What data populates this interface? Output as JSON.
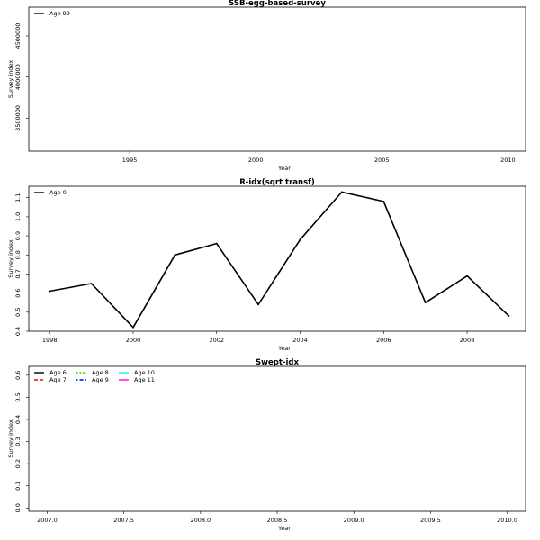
{
  "chart_data": [
    {
      "type": "line",
      "title": "SSB-egg-based-survey",
      "xlabel": "Year",
      "ylabel": "Survey index",
      "x_ticks": [
        "1995",
        "2000",
        "2005",
        "2010"
      ],
      "y_ticks": [
        "3500000",
        "4000000",
        "4500000"
      ],
      "xlim": [
        1991,
        2010.7
      ],
      "ylim": [
        3100000,
        4850000
      ],
      "series": [
        {
          "name": "Age 99",
          "color": "#000000",
          "dash": "solid",
          "x": [],
          "values": []
        }
      ]
    },
    {
      "type": "line",
      "title": "R-idx(sqrt transf)",
      "xlabel": "Year",
      "ylabel": "Survey index",
      "x_ticks": [
        "1998",
        "2000",
        "2002",
        "2004",
        "2006",
        "2008"
      ],
      "y_ticks": [
        "0.4",
        "0.5",
        "0.6",
        "0.7",
        "0.8",
        "0.9",
        "1.0",
        "1.1"
      ],
      "xlim": [
        1997.5,
        2009.4
      ],
      "ylim": [
        0.4,
        1.16
      ],
      "series": [
        {
          "name": "Age 0",
          "color": "#000000",
          "dash": "solid",
          "x": [
            1998,
            1999,
            2000,
            2001,
            2002,
            2003,
            2004,
            2005,
            2006,
            2007,
            2008,
            2009
          ],
          "values": [
            0.61,
            0.65,
            0.42,
            0.8,
            0.86,
            0.54,
            0.88,
            1.13,
            1.08,
            0.55,
            0.69,
            0.48
          ]
        }
      ]
    },
    {
      "type": "line",
      "title": "Swept-idx",
      "xlabel": "Year",
      "ylabel": "Survey index",
      "x_ticks": [
        "2007.0",
        "2007.5",
        "2008.0",
        "2008.5",
        "2009.0",
        "2009.5",
        "2010.0"
      ],
      "y_ticks": [
        "0.0",
        "0.1",
        "0.2",
        "0.3",
        "0.4",
        "0.5",
        "0.6"
      ],
      "xlim": [
        2006.88,
        2010.12
      ],
      "ylim": [
        -0.015,
        0.64
      ],
      "series": [
        {
          "name": "Age 6",
          "color": "#000000",
          "dash": "solid",
          "x": [],
          "values": []
        },
        {
          "name": "Age 7",
          "color": "#ff0000",
          "dash": "dashed",
          "x": [],
          "values": []
        },
        {
          "name": "Age 8",
          "color": "#00cd00",
          "dash": "dotted",
          "x": [],
          "values": []
        },
        {
          "name": "Age 9",
          "color": "#0000ff",
          "dash": "dotdash",
          "x": [],
          "values": []
        },
        {
          "name": "Age 10",
          "color": "#00ffff",
          "dash": "solid",
          "x": [],
          "values": []
        },
        {
          "name": "Age 11",
          "color": "#ff00ff",
          "dash": "solid",
          "x": [],
          "values": []
        }
      ]
    }
  ]
}
